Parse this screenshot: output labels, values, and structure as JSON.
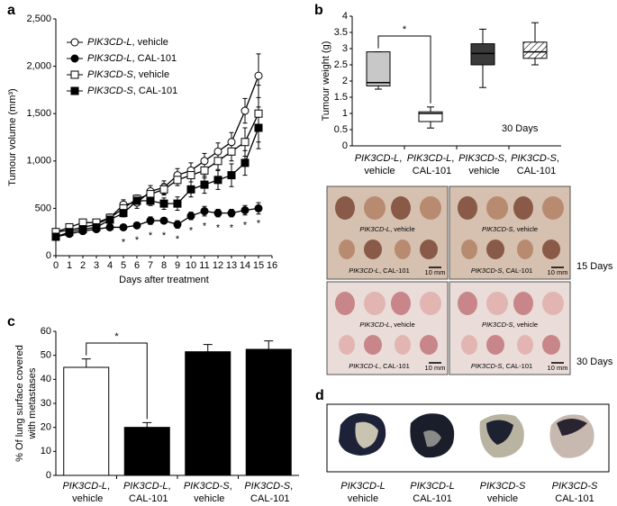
{
  "chart_data": [
    {
      "type": "line",
      "panel": "a",
      "xlabel": "Days after treatment",
      "ylabel": "Tumour volume (mm³)",
      "x": [
        0,
        1,
        2,
        3,
        4,
        5,
        6,
        7,
        8,
        9,
        10,
        11,
        12,
        13,
        14,
        15
      ],
      "xlim": [
        0,
        16
      ],
      "xticks": [
        0,
        1,
        2,
        3,
        4,
        5,
        6,
        7,
        8,
        9,
        10,
        11,
        12,
        13,
        14,
        15,
        16
      ],
      "ylim": [
        0,
        2500
      ],
      "yticks": [
        0,
        500,
        {
          "value": 1000,
          "label": "1,000"
        },
        {
          "value": 1500,
          "label": "1,500"
        },
        {
          "value": 2000,
          "label": "2,000"
        },
        {
          "value": 2500,
          "label": "2,500"
        }
      ],
      "series": [
        {
          "name": "PIK3CD-L, vehicle",
          "color": "#000000",
          "marker": "circle",
          "filled": false,
          "values": [
            250,
            270,
            300,
            330,
            400,
            540,
            560,
            680,
            720,
            850,
            900,
            1000,
            1100,
            1200,
            1530,
            1900
          ],
          "errors": [
            30,
            30,
            30,
            30,
            40,
            50,
            60,
            60,
            70,
            70,
            80,
            80,
            90,
            100,
            130,
            230
          ]
        },
        {
          "name": "PIK3CD-L, CAL-101",
          "color": "#000000",
          "marker": "circle",
          "filled": true,
          "values": [
            200,
            230,
            260,
            280,
            300,
            300,
            320,
            370,
            370,
            330,
            420,
            470,
            450,
            450,
            480,
            500
          ],
          "errors": [
            20,
            20,
            20,
            20,
            20,
            20,
            30,
            40,
            30,
            40,
            40,
            50,
            40,
            40,
            50,
            60
          ]
        },
        {
          "name": "PIK3CD-S, vehicle",
          "color": "#000000",
          "marker": "square",
          "filled": false,
          "values": [
            250,
            300,
            350,
            350,
            400,
            500,
            600,
            650,
            700,
            800,
            850,
            900,
            1000,
            1100,
            1200,
            1500
          ],
          "errors": [
            20,
            20,
            30,
            30,
            30,
            40,
            40,
            50,
            60,
            60,
            70,
            80,
            90,
            100,
            150,
            300
          ]
        },
        {
          "name": "PIK3CD-S, CAL-101",
          "color": "#000000",
          "marker": "square",
          "filled": true,
          "values": [
            200,
            250,
            280,
            300,
            380,
            450,
            580,
            580,
            550,
            550,
            700,
            750,
            800,
            850,
            980,
            1350
          ],
          "errors": [
            20,
            20,
            20,
            20,
            30,
            40,
            50,
            50,
            60,
            70,
            80,
            90,
            100,
            120,
            130,
            220
          ]
        }
      ],
      "annotations": [
        {
          "x": 5,
          "label": "*"
        },
        {
          "x": 6,
          "label": "*"
        },
        {
          "x": 7,
          "label": "*"
        },
        {
          "x": 8,
          "label": "*"
        },
        {
          "x": 9,
          "label": "*"
        },
        {
          "x": 10,
          "label": "*"
        },
        {
          "x": 11,
          "label": "*"
        },
        {
          "x": 12,
          "label": "*"
        },
        {
          "x": 13,
          "label": "*"
        },
        {
          "x": 14,
          "label": "*"
        },
        {
          "x": 15,
          "label": "*"
        }
      ]
    },
    {
      "type": "box",
      "panel": "b",
      "ylabel": "Tumour weight (g)",
      "note": "30 Days",
      "categories": [
        "PIK3CD-L, vehicle",
        "PIK3CD-L, CAL-101",
        "PIK3CD-S, vehicle",
        "PIK3CD-S, CAL-101"
      ],
      "ylim": [
        0,
        4
      ],
      "yticks": [
        0,
        0.5,
        1,
        1.5,
        2,
        2.5,
        3,
        3.5,
        4
      ],
      "boxes": [
        {
          "min": 1.75,
          "q1": 1.85,
          "median": 1.95,
          "q3": 2.9,
          "max": 2.9,
          "color": "#c8c8c8"
        },
        {
          "min": 0.55,
          "q1": 0.75,
          "median": 1.0,
          "q3": 1.05,
          "max": 1.2,
          "color": "#ffffff"
        },
        {
          "min": 1.8,
          "q1": 2.5,
          "median": 2.85,
          "q3": 3.15,
          "max": 3.6,
          "color": "#3a3a3a"
        },
        {
          "min": 2.5,
          "q1": 2.7,
          "median": 2.9,
          "q3": 3.2,
          "max": 3.8,
          "color": "#ffffff",
          "pattern": "hatch"
        }
      ],
      "annotations": [
        {
          "label": "*",
          "between": [
            0,
            1
          ]
        }
      ]
    },
    {
      "type": "bar",
      "panel": "c",
      "ylabel": [
        "% Of lung surface covered",
        "with metastases"
      ],
      "categories": [
        "PIK3CD-L, vehicle",
        "PIK3CD-L, CAL-101",
        "PIK3CD-S, vehicle",
        "PIK3CD-S, CAL-101"
      ],
      "values": [
        45,
        20,
        51.5,
        52.5
      ],
      "errors": [
        3.5,
        2,
        3,
        3.5
      ],
      "colors": [
        "#ffffff",
        "#000000",
        "#000000",
        "#000000"
      ],
      "ylim": [
        0,
        60
      ],
      "yticks": [
        0,
        10,
        20,
        30,
        40,
        50,
        60
      ],
      "annotations": [
        {
          "label": "*",
          "between": [
            0,
            1
          ]
        }
      ]
    }
  ],
  "photos": {
    "groups": [
      {
        "days": "15 Days",
        "panels": [
          {
            "top": "PIK3CD-L, vehicle",
            "bottom": "PIK3CD-L, CAL-101",
            "scale": "10 mm"
          },
          {
            "top": "PIK3CD-S, vehicle",
            "bottom": "PIK3CD-S, CAL-101",
            "scale": "10 mm"
          }
        ]
      },
      {
        "days": "30 Days",
        "panels": [
          {
            "top": "PIK3CD-L, vehicle",
            "bottom": "PIK3CD-L, CAL-101",
            "scale": "10 mm"
          },
          {
            "top": "PIK3CD-S, vehicle",
            "bottom": "PIK3CD-S, CAL-101",
            "scale": "10 mm"
          }
        ]
      }
    ]
  },
  "panel_d": {
    "panel": "d",
    "labels": [
      {
        "gene": "PIK3CD-L",
        "condition": "vehicle"
      },
      {
        "gene": "PIK3CD-L",
        "condition": "CAL-101"
      },
      {
        "gene": "PIK3CD-S",
        "condition": "vehicle"
      },
      {
        "gene": "PIK3CD-S",
        "condition": "CAL-101"
      }
    ]
  }
}
